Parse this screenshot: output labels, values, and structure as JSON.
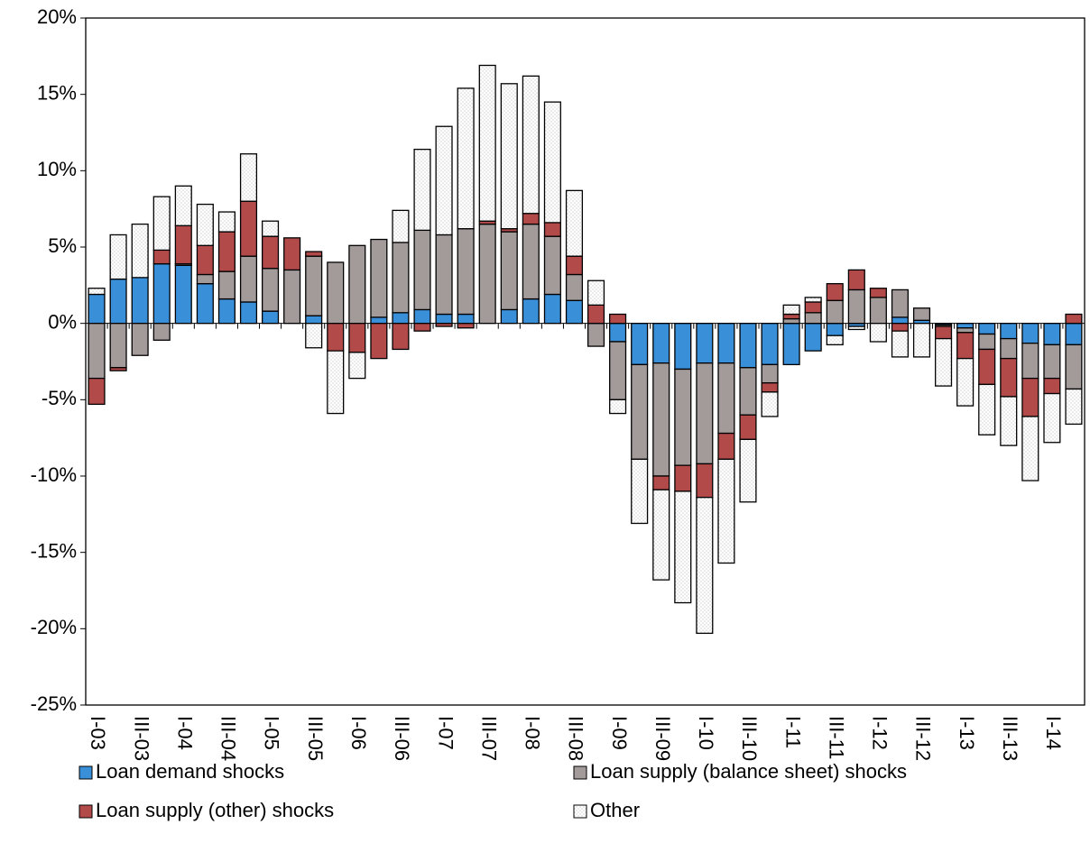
{
  "chart_data": {
    "type": "bar",
    "stacked": true,
    "categories": [
      "I-03",
      null,
      "III-03",
      null,
      "I-04",
      null,
      "III-04",
      null,
      "I-05",
      null,
      "III-05",
      null,
      "I-06",
      null,
      "III-06",
      null,
      "I-07",
      null,
      "III-07",
      null,
      "I-08",
      null,
      "III-08",
      null,
      "I-09",
      null,
      "III-09",
      null,
      "I-10",
      null,
      "III-10",
      null,
      "I-11",
      null,
      "III-11",
      null,
      "I-12",
      null,
      "III-12",
      null,
      "I-13",
      null,
      "III-13",
      null,
      "I-14",
      null
    ],
    "series": [
      {
        "name": "Loan demand shocks",
        "color": "#3a8fd9",
        "values": [
          1.9,
          2.9,
          3.0,
          3.9,
          3.8,
          2.6,
          1.6,
          1.4,
          0.8,
          0,
          0.5,
          0,
          0,
          0.4,
          0.7,
          0.9,
          0.6,
          0.6,
          0,
          0.9,
          1.6,
          1.9,
          1.5,
          0,
          -1.2,
          -2.7,
          -2.6,
          -3.0,
          -2.6,
          -2.6,
          -2.9,
          -2.7,
          -2.7,
          -1.8,
          -0.8,
          -0.2,
          0,
          0.4,
          0.2,
          -0.1,
          -0.3,
          -0.7,
          -1.0,
          -1.3,
          -1.4,
          -1.4
        ]
      },
      {
        "name": "Loan supply (balance sheet) shocks",
        "color": "#a39a9a",
        "values": [
          -3.6,
          -2.9,
          -2.1,
          -1.1,
          0.1,
          0.6,
          1.8,
          3.0,
          2.8,
          3.5,
          3.9,
          4.0,
          5.1,
          5.1,
          4.6,
          5.2,
          5.2,
          5.6,
          6.5,
          5.1,
          4.9,
          3.8,
          1.7,
          -1.5,
          -3.8,
          -6.2,
          -7.4,
          -6.3,
          -6.6,
          -4.6,
          -3.1,
          -1.2,
          0.3,
          0.7,
          1.5,
          2.2,
          1.7,
          1.8,
          0.8,
          -0.1,
          -0.3,
          -1.0,
          -1.3,
          -2.3,
          -2.2,
          -2.9
        ]
      },
      {
        "name": "Loan supply (other) shocks",
        "color": "#b24a4a",
        "values": [
          -1.7,
          -0.2,
          0,
          0.9,
          2.5,
          1.9,
          2.6,
          3.6,
          2.1,
          2.1,
          0.3,
          -1.8,
          -1.9,
          -2.3,
          -1.7,
          -0.5,
          -0.2,
          -0.3,
          0.2,
          0.2,
          0.7,
          0.9,
          1.2,
          1.2,
          0.6,
          0,
          -0.9,
          -1.7,
          -2.2,
          -1.7,
          -1.6,
          -0.6,
          0.3,
          0.7,
          1.1,
          1.3,
          0.6,
          -0.5,
          0,
          -0.8,
          -1.7,
          -2.3,
          -2.5,
          -2.5,
          -1.0,
          0.6
        ]
      },
      {
        "name": "Other",
        "color": "#ffffff",
        "values": [
          0.4,
          2.9,
          3.5,
          3.5,
          2.6,
          2.7,
          1.3,
          3.1,
          1.0,
          0,
          -1.6,
          -4.1,
          -1.7,
          0,
          2.1,
          5.3,
          7.1,
          9.2,
          10.2,
          9.5,
          9.0,
          7.9,
          4.3,
          1.6,
          -0.9,
          -4.2,
          -5.9,
          -7.3,
          -8.9,
          -6.8,
          -4.1,
          -1.6,
          0.6,
          0.3,
          -0.6,
          -0.2,
          -1.2,
          -1.7,
          -2.2,
          -3.1,
          -3.1,
          -3.3,
          -3.2,
          -4.2,
          -3.2,
          -2.3
        ]
      }
    ],
    "ylim": [
      -25,
      20
    ],
    "yticks": [
      {
        "value": -25,
        "label": "-25%"
      },
      {
        "value": -20,
        "label": "-20%"
      },
      {
        "value": -15,
        "label": "-15%"
      },
      {
        "value": -10,
        "label": "-10%"
      },
      {
        "value": -5,
        "label": "-5%"
      },
      {
        "value": 0,
        "label": "0%"
      },
      {
        "value": 5,
        "label": "5%"
      },
      {
        "value": 10,
        "label": "10%"
      },
      {
        "value": 15,
        "label": "15%"
      },
      {
        "value": 20,
        "label": "20%"
      }
    ],
    "grid": false,
    "legend": "bottom"
  }
}
